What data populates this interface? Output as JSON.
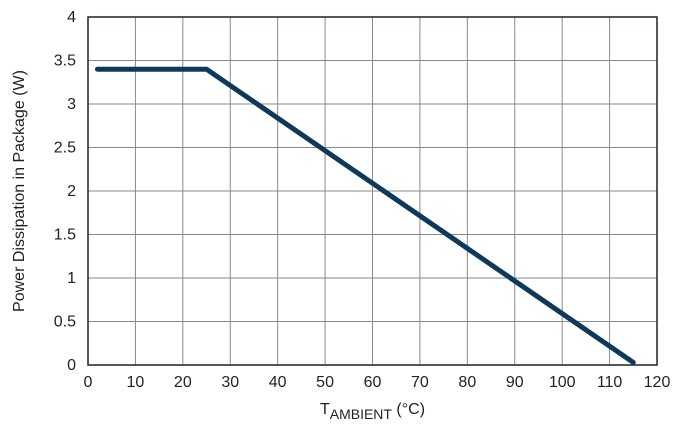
{
  "chart_data": {
    "type": "line",
    "title": "",
    "xlabel": {
      "main": "T",
      "sub": "AMBIENT",
      "suffix": " (°C)"
    },
    "ylabel": "Power Dissipation in Package (W)",
    "xlim": [
      0,
      120
    ],
    "ylim": [
      0,
      4
    ],
    "x_ticks": [
      0,
      10,
      20,
      30,
      40,
      50,
      60,
      70,
      80,
      90,
      100,
      110,
      120
    ],
    "y_ticks": [
      0,
      0.5,
      1,
      1.5,
      2,
      2.5,
      3,
      3.5,
      4
    ],
    "grid": true,
    "legend": "none",
    "series": [
      {
        "x": [
          2,
          25,
          115
        ],
        "y": [
          3.4,
          3.4,
          0.03
        ],
        "color": "#0d3a5c"
      }
    ]
  }
}
